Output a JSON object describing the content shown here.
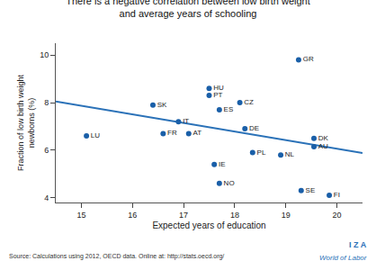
{
  "chart_data": {
    "type": "scatter",
    "title": "There is a negative correlation between low birth weight\nand average years of schooling",
    "xlabel": "Expected years of education",
    "ylabel": "Fraction of low birth weight\nnewborns (%)",
    "xlim": [
      14.5,
      20.5
    ],
    "ylim": [
      3.8,
      10.5
    ],
    "xticks": [
      15,
      16,
      17,
      18,
      19,
      20
    ],
    "yticks": [
      4,
      6,
      8,
      10
    ],
    "grid": false,
    "annotations": [
      "Source: Calculations using 2012, OECD data. Online at: http://stats.oecd.org/",
      "I Z A",
      "World of Labor"
    ],
    "series": [
      {
        "type": "line",
        "color": "#2B72B8",
        "x": [
          14.5,
          20.5
        ],
        "values": [
          8.05,
          5.88
        ]
      },
      {
        "type": "scatter",
        "color": "#1A5FA8",
        "x": [
          15.1,
          16.4,
          16.6,
          16.9,
          17.1,
          17.5,
          17.5,
          17.6,
          17.7,
          17.7,
          18.1,
          18.2,
          18.35,
          18.9,
          19.25,
          19.3,
          19.55,
          19.55,
          19.85
        ],
        "values": [
          6.6,
          7.9,
          6.7,
          7.2,
          6.7,
          8.6,
          8.3,
          5.4,
          7.7,
          4.6,
          8.0,
          6.9,
          5.9,
          5.8,
          9.8,
          4.3,
          6.5,
          6.15,
          4.1
        ],
        "labels": [
          "LU",
          "SK",
          "FR",
          "IT",
          "AT",
          "HU",
          "PT",
          "IE",
          "ES",
          "NO",
          "CZ",
          "DE",
          "PL",
          "NL",
          "GR",
          "SE",
          "DK",
          "AU",
          "FI"
        ]
      }
    ]
  }
}
